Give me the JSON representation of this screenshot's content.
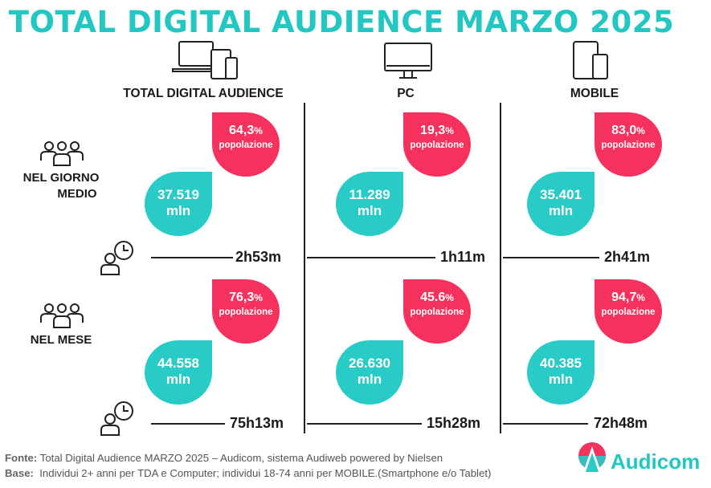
{
  "title": "TOTAL DIGITAL AUDIENCE MARZO 2025",
  "columns": [
    {
      "label": "TOTAL DIGITAL AUDIENCE",
      "icon": "multi-device-icon"
    },
    {
      "label": "PC",
      "icon": "desktop-monitor-icon"
    },
    {
      "label": "MOBILE",
      "icon": "smartphone-tablet-icon"
    }
  ],
  "rows": [
    {
      "label_line1": "NEL GIORNO",
      "label_line2": "MEDIO",
      "icon": "people-group-icon"
    },
    {
      "label_line1": "NEL MESE",
      "label_line2": "",
      "icon": "people-group-icon"
    }
  ],
  "cells": {
    "giorno": [
      {
        "pct": "64,3",
        "pct_unit": "%",
        "pop": "popolazione",
        "users": "37.519",
        "unit": "mln",
        "time": "2h53m"
      },
      {
        "pct": "19,3",
        "pct_unit": "%",
        "pop": "popolazione",
        "users": "11.289",
        "unit": "mln",
        "time": "1h11m"
      },
      {
        "pct": "83,0",
        "pct_unit": "%",
        "pop": "popolazione",
        "users": "35.401",
        "unit": "mln",
        "time": "2h41m"
      }
    ],
    "mese": [
      {
        "pct": "76,3",
        "pct_unit": "%",
        "pop": "popolazione",
        "users": "44.558",
        "unit": "mln",
        "time": "75h13m"
      },
      {
        "pct": "45.6",
        "pct_unit": "%",
        "pop": "popolazione",
        "users": "26.630",
        "unit": "mln",
        "time": "15h28m"
      },
      {
        "pct": "94,7",
        "pct_unit": "%",
        "pop": "popolazione",
        "users": "40.385",
        "unit": "mln",
        "time": "72h48m"
      }
    ]
  },
  "colors": {
    "teal": "#28cbc6",
    "pink": "#f4325d",
    "title": "#22c7c2"
  },
  "footer": {
    "fonte_label": "Fonte:",
    "fonte_text": " Total Digital Audience MARZO 2025 – Audicom, sistema Audiweb powered by Nielsen",
    "base_label": "Base:",
    "base_text": "  Individui 2+ anni per TDA e Computer; individui 18-74 anni per MOBILE.(Smartphone e/o Tablet)"
  },
  "logo": {
    "text": "Audicom"
  }
}
